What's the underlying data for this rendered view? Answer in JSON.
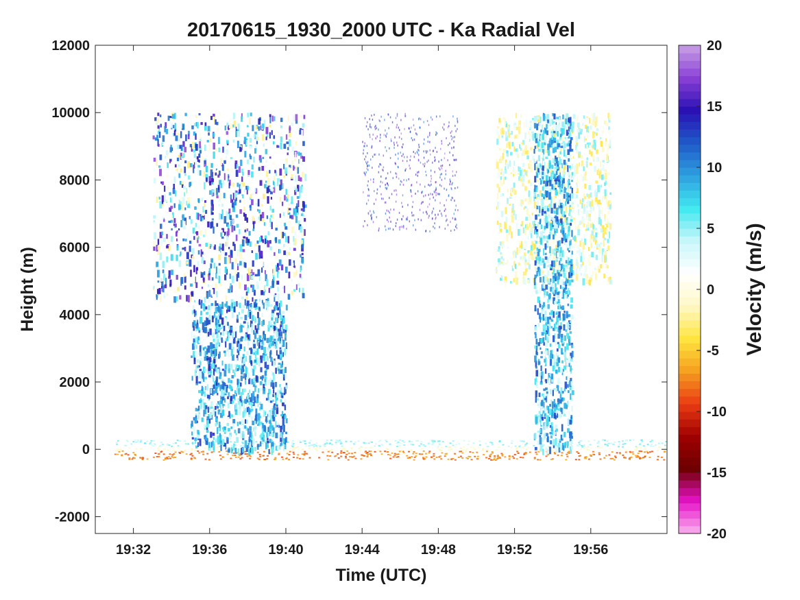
{
  "chart_data": {
    "type": "heatmap",
    "title": "20170615_1930_2000 UTC - Ka Radial Vel",
    "xlabel": "Time (UTC)",
    "ylabel": "Height (m)",
    "xlim": [
      "19:30",
      "20:00"
    ],
    "ylim": [
      -2500,
      12000
    ],
    "x_ticks": [
      "19:32",
      "19:36",
      "19:40",
      "19:44",
      "19:48",
      "19:52",
      "19:56"
    ],
    "y_ticks": [
      12000,
      10000,
      8000,
      6000,
      4000,
      2000,
      0,
      -2000
    ],
    "colorbar": {
      "label": "Velocity (m/s)",
      "range": [
        -20,
        20
      ],
      "ticks": [
        20,
        15,
        10,
        5,
        0,
        -5,
        -10,
        -15,
        -20
      ],
      "colors": [
        "#c8a0e6",
        "#8a40d6",
        "#2a10b4",
        "#1e5ac8",
        "#2fa0e0",
        "#40e8f0",
        "#c8f6fa",
        "#ffffff",
        "#fff8c8",
        "#ffe640",
        "#f5a020",
        "#eb3c14",
        "#a00000",
        "#6e0000",
        "#e612c8",
        "#fab4f0"
      ]
    },
    "features": [
      {
        "name": "surface band",
        "time": [
          "19:31",
          "20:00"
        ],
        "height": [
          -300,
          300
        ],
        "value": "mixed -10 to 5"
      },
      {
        "name": "upper cloud west",
        "time": [
          "19:33",
          "19:41"
        ],
        "height": [
          4500,
          10000
        ],
        "value": "mixed 17 to -3"
      },
      {
        "name": "precipitation shafts west",
        "time": [
          "19:35",
          "19:40"
        ],
        "height": [
          0,
          4500
        ],
        "value": "mixed 3 to 13"
      },
      {
        "name": "sparse echoes middle",
        "time": [
          "19:44",
          "19:49"
        ],
        "height": [
          6500,
          10000
        ],
        "value": "mixed 18"
      },
      {
        "name": "upper cloud east",
        "time": [
          "19:51",
          "19:57"
        ],
        "height": [
          5000,
          10000
        ],
        "value": "mixed -3 to 5"
      },
      {
        "name": "precipitation shaft east",
        "time": [
          "19:53",
          "19:55"
        ],
        "height": [
          0,
          10000
        ],
        "value": "mixed 2 to 13"
      }
    ]
  }
}
